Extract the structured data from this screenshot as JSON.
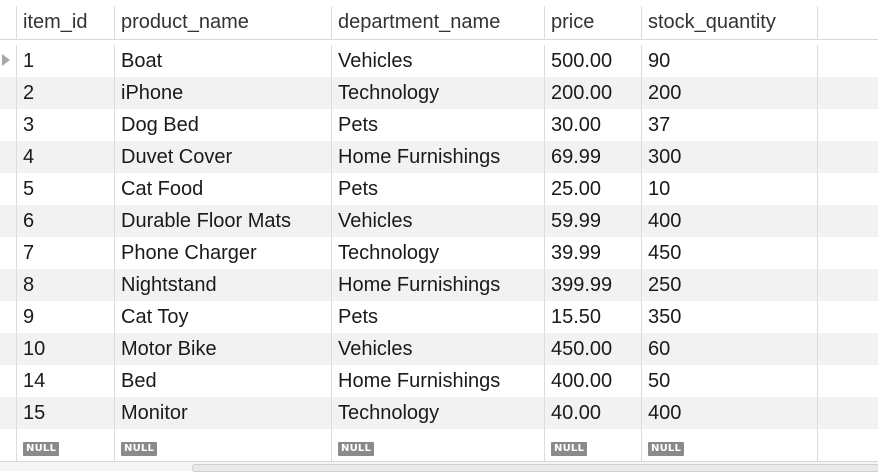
{
  "columns": [
    "item_id",
    "product_name",
    "department_name",
    "price",
    "stock_quantity"
  ],
  "rows": [
    [
      "1",
      "Boat",
      "Vehicles",
      "500.00",
      "90"
    ],
    [
      "2",
      "iPhone",
      "Technology",
      "200.00",
      "200"
    ],
    [
      "3",
      "Dog Bed",
      "Pets",
      "30.00",
      "37"
    ],
    [
      "4",
      "Duvet Cover",
      "Home Furnishings",
      "69.99",
      "300"
    ],
    [
      "5",
      "Cat Food",
      "Pets",
      "25.00",
      "10"
    ],
    [
      "6",
      "Durable Floor Mats",
      "Vehicles",
      "59.99",
      "400"
    ],
    [
      "7",
      "Phone Charger",
      "Technology",
      "39.99",
      "450"
    ],
    [
      "8",
      "Nightstand",
      "Home Furnishings",
      "399.99",
      "250"
    ],
    [
      "9",
      "Cat Toy",
      "Pets",
      "15.50",
      "350"
    ],
    [
      "10",
      "Motor Bike",
      "Vehicles",
      "450.00",
      "60"
    ],
    [
      "14",
      "Bed",
      "Home Furnishings",
      "400.00",
      "50"
    ],
    [
      "15",
      "Monitor",
      "Technology",
      "40.00",
      "400"
    ]
  ],
  "null_label": "NULL",
  "colors": {
    "row_stripe": "#f2f2f2",
    "null_badge": "#8a8a8a",
    "current_row_marker": "#a7a7a7"
  },
  "icons": {
    "current_row": "triangle-right-icon"
  }
}
